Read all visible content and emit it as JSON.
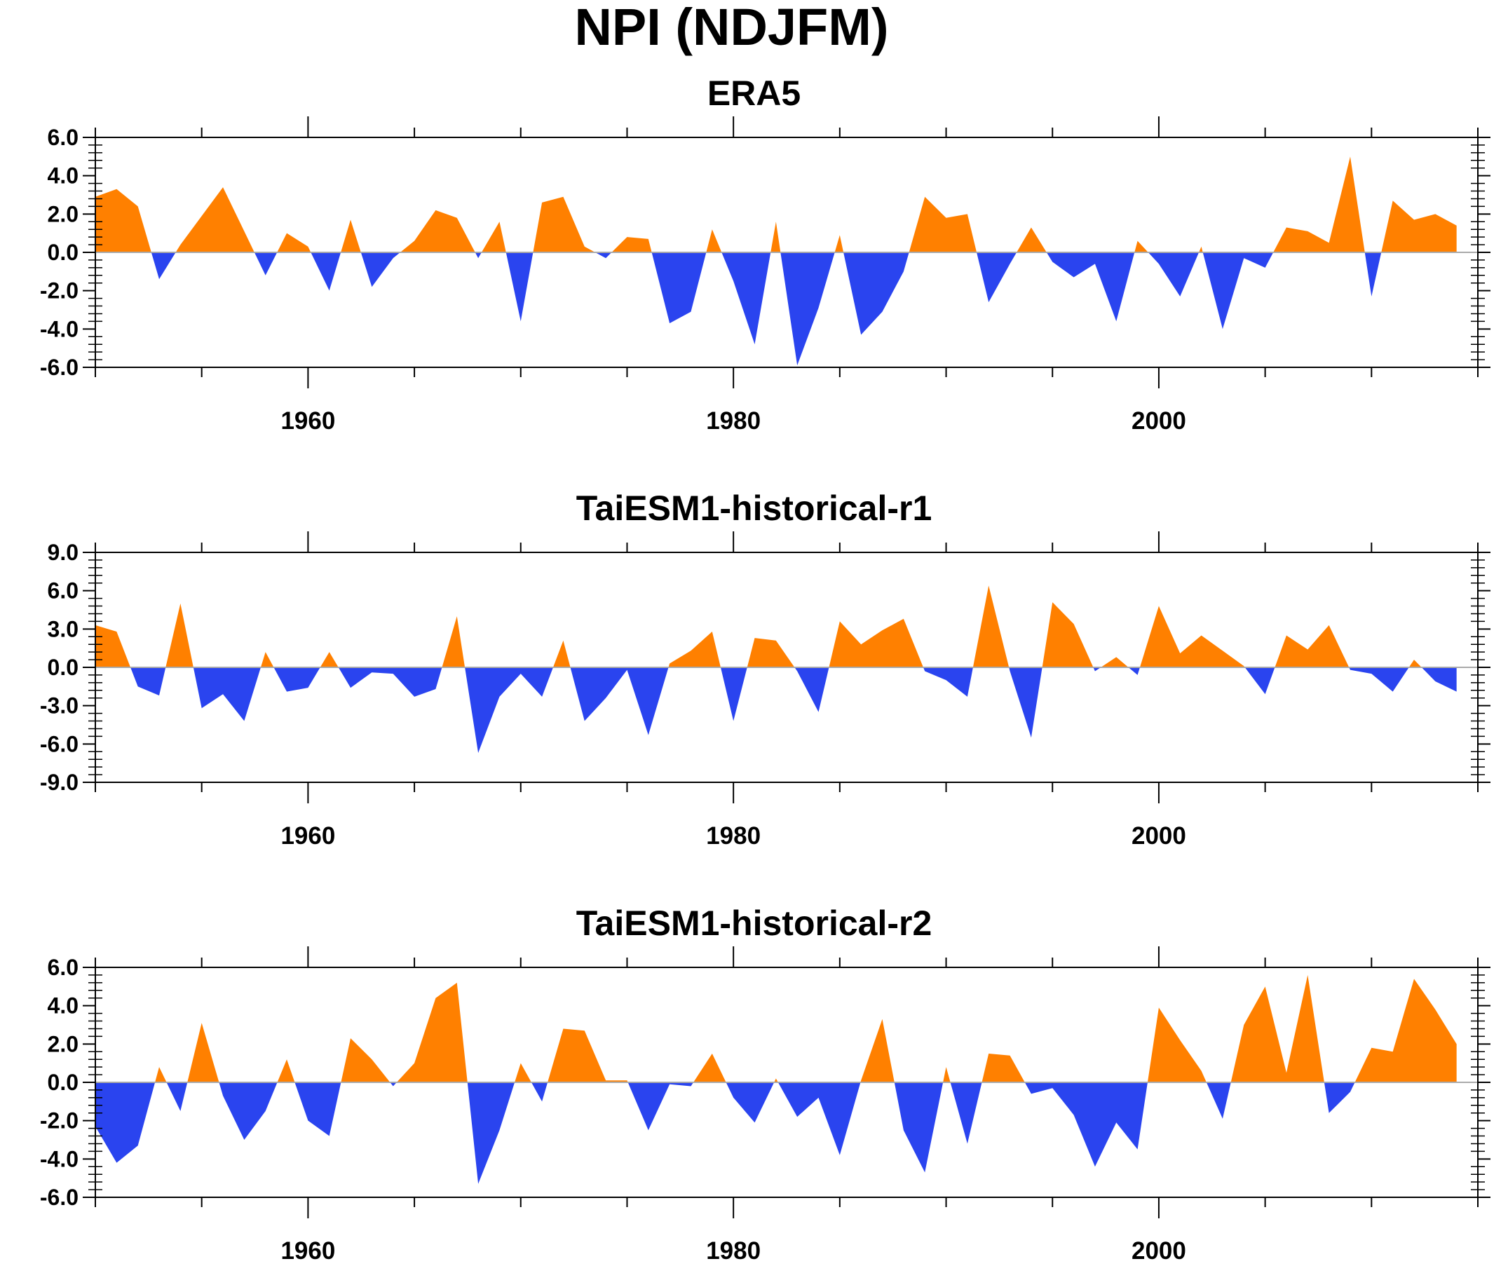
{
  "title": "NPI (NDJFM)",
  "colors": {
    "positive": "#ff8000",
    "negative": "#2a44ef",
    "axis": "#000000"
  },
  "chart_data": [
    {
      "type": "area",
      "title": "ERA5",
      "x_start": 1950,
      "x_end": 2014,
      "xlim": [
        1950,
        2015
      ],
      "xticks": [
        1960,
        1980,
        2000
      ],
      "ylim": [
        -6,
        6
      ],
      "yticks": [
        "6.0",
        "4.0",
        "2.0",
        "0.0",
        "-2.0",
        "-4.0",
        "-6.0"
      ],
      "values": [
        2.9,
        3.3,
        2.4,
        -1.4,
        0.4,
        1.9,
        3.4,
        1.1,
        -1.2,
        1.0,
        0.3,
        -2.0,
        1.7,
        -1.8,
        -0.3,
        0.6,
        2.2,
        1.8,
        -0.3,
        1.6,
        -3.6,
        2.6,
        2.9,
        0.3,
        -0.3,
        0.8,
        0.7,
        -3.7,
        -3.1,
        1.2,
        -1.5,
        -4.8,
        1.6,
        -5.9,
        -2.9,
        0.9,
        -4.3,
        -3.1,
        -1.0,
        2.9,
        1.8,
        2.0,
        -2.6,
        -0.6,
        1.3,
        -0.5,
        -1.3,
        -0.6,
        -3.6,
        0.6,
        -0.6,
        -2.3,
        0.3,
        -4.0,
        -0.3,
        -0.8,
        1.3,
        1.1,
        0.5,
        5.0,
        -2.3,
        2.7,
        1.7,
        2.0,
        1.4
      ]
    },
    {
      "type": "area",
      "title": "TaiESM1-historical-r1",
      "x_start": 1950,
      "x_end": 2014,
      "xlim": [
        1950,
        2015
      ],
      "xticks": [
        1960,
        1980,
        2000
      ],
      "ylim": [
        -9,
        9
      ],
      "yticks": [
        "9.0",
        "6.0",
        "3.0",
        "0.0",
        "-3.0",
        "-6.0",
        "-9.0"
      ],
      "values": [
        3.3,
        2.8,
        -1.5,
        -2.2,
        5.0,
        -3.2,
        -2.1,
        -4.2,
        1.2,
        -1.9,
        -1.6,
        1.2,
        -1.6,
        -0.4,
        -0.5,
        -2.3,
        -1.7,
        4.0,
        -6.7,
        -2.3,
        -0.5,
        -2.3,
        2.1,
        -4.2,
        -2.4,
        -0.2,
        -5.3,
        0.3,
        1.3,
        2.8,
        -4.2,
        2.3,
        2.1,
        -0.3,
        -3.5,
        3.6,
        1.8,
        2.9,
        3.8,
        -0.3,
        -1.0,
        -2.3,
        6.4,
        -0.3,
        -5.5,
        5.1,
        3.4,
        -0.3,
        0.8,
        -0.6,
        4.8,
        1.1,
        2.5,
        1.3,
        0.1,
        -2.1,
        2.5,
        1.4,
        3.3,
        -0.2,
        -0.5,
        -1.9,
        0.6,
        -1.1,
        -1.9
      ]
    },
    {
      "type": "area",
      "title": "TaiESM1-historical-r2",
      "x_start": 1950,
      "x_end": 2014,
      "xlim": [
        1950,
        2015
      ],
      "xticks": [
        1960,
        1980,
        2000
      ],
      "ylim": [
        -6,
        6
      ],
      "yticks": [
        "6.0",
        "4.0",
        "2.0",
        "0.0",
        "-2.0",
        "-4.0",
        "-6.0"
      ],
      "values": [
        -2.3,
        -4.2,
        -3.3,
        0.8,
        -1.5,
        3.1,
        -0.7,
        -3.0,
        -1.5,
        1.2,
        -2.0,
        -2.8,
        2.3,
        1.2,
        -0.2,
        1.0,
        4.4,
        5.2,
        -5.3,
        -2.5,
        1.0,
        -1.0,
        2.8,
        2.7,
        0.1,
        0.1,
        -2.5,
        -0.1,
        -0.2,
        1.5,
        -0.8,
        -2.1,
        0.2,
        -1.8,
        -0.8,
        -3.8,
        0.1,
        3.3,
        -2.5,
        -4.7,
        0.8,
        -3.2,
        1.5,
        1.4,
        -0.6,
        -0.3,
        -1.7,
        -4.4,
        -2.1,
        -3.5,
        3.9,
        2.2,
        0.6,
        -1.9,
        3.0,
        5.0,
        0.5,
        5.6,
        -1.6,
        -0.5,
        1.8,
        1.6,
        5.4,
        3.8,
        2.0
      ]
    }
  ]
}
